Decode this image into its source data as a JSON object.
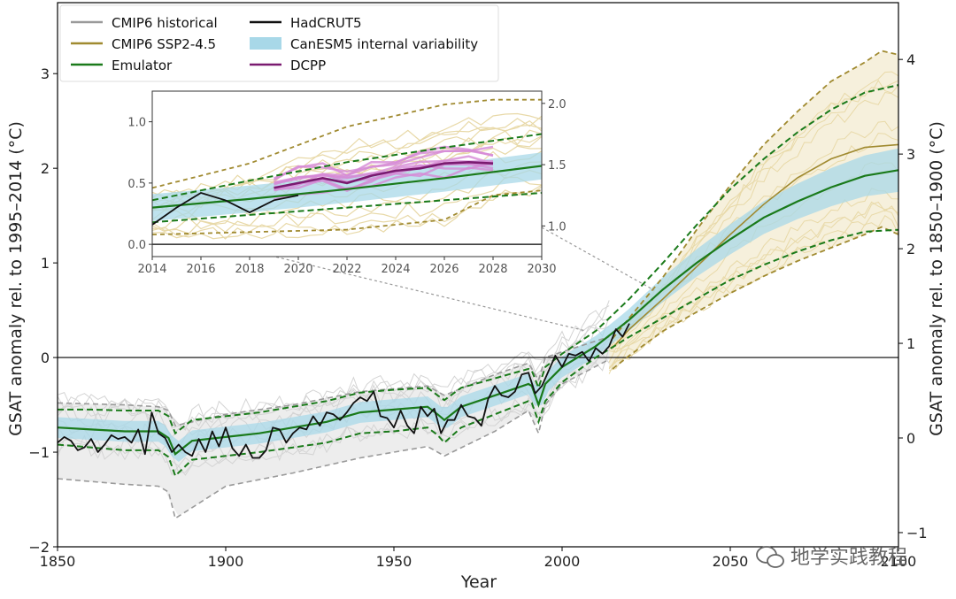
{
  "chart_data": {
    "type": "line",
    "title": "",
    "xlabel": "Year",
    "ylabel_left": "GSAT anomaly rel. to 1995–2014 (°C)",
    "ylabel_right": "GSAT anomaly rel. to 1850–1900 (°C)",
    "xlim": [
      1850,
      2100
    ],
    "ylim": [
      -2.0,
      3.75
    ],
    "x_ticks": [
      "1850",
      "1900",
      "1950",
      "2000",
      "2050",
      "2100"
    ],
    "y_ticks_left": [
      "−2",
      "−1",
      "0",
      "1",
      "2",
      "3"
    ],
    "y_ticks_right": [
      "−1",
      "0",
      "1",
      "2",
      "3",
      "4"
    ],
    "right_axis_offset": 0.85,
    "legend": [
      {
        "name": "CMIP6 historical",
        "color": "#9a9a9a",
        "style": "line"
      },
      {
        "name": "CMIP6 SSP2-4.5",
        "color": "#a08a30",
        "style": "line"
      },
      {
        "name": "Emulator",
        "color": "#1a7a1a",
        "style": "line"
      },
      {
        "name": "HadCRUT5",
        "color": "#111111",
        "style": "line"
      },
      {
        "name": "CanESM5  internal variability",
        "color": "#a8d8e8",
        "style": "band"
      },
      {
        "name": "DCPP",
        "color": "#7a1a70",
        "style": "line"
      }
    ],
    "series": {
      "emulator_median": {
        "x": [
          1850,
          1860,
          1870,
          1880,
          1883,
          1885,
          1890,
          1900,
          1910,
          1920,
          1930,
          1940,
          1950,
          1960,
          1963,
          1965,
          1970,
          1980,
          1990,
          1991,
          1993,
          1995,
          2000,
          2010,
          2020,
          2030,
          2040,
          2050,
          2060,
          2070,
          2080,
          2090,
          2100
        ],
        "y": [
          -0.74,
          -0.76,
          -0.78,
          -0.78,
          -0.85,
          -1.02,
          -0.88,
          -0.84,
          -0.8,
          -0.74,
          -0.68,
          -0.58,
          -0.55,
          -0.52,
          -0.6,
          -0.66,
          -0.52,
          -0.4,
          -0.28,
          -0.3,
          -0.5,
          -0.28,
          -0.1,
          0.12,
          0.4,
          0.72,
          1.0,
          1.25,
          1.48,
          1.65,
          1.8,
          1.92,
          1.98
        ]
      },
      "emulator_upper": {
        "x": [
          1850,
          1860,
          1870,
          1880,
          1883,
          1885,
          1890,
          1900,
          1910,
          1920,
          1930,
          1940,
          1950,
          1960,
          1963,
          1965,
          1970,
          1980,
          1990,
          1991,
          1993,
          1995,
          2000,
          2010,
          2020,
          2030,
          2040,
          2050,
          2060,
          2070,
          2080,
          2090,
          2100
        ],
        "y": [
          -0.55,
          -0.55,
          -0.56,
          -0.56,
          -0.62,
          -0.8,
          -0.66,
          -0.62,
          -0.58,
          -0.52,
          -0.46,
          -0.37,
          -0.34,
          -0.32,
          -0.4,
          -0.45,
          -0.32,
          -0.22,
          -0.12,
          -0.14,
          -0.32,
          -0.1,
          0.04,
          0.28,
          0.62,
          1.0,
          1.4,
          1.78,
          2.1,
          2.38,
          2.62,
          2.8,
          2.88
        ]
      },
      "emulator_lower": {
        "x": [
          1850,
          1860,
          1870,
          1880,
          1883,
          1885,
          1890,
          1900,
          1910,
          1920,
          1930,
          1940,
          1950,
          1960,
          1963,
          1965,
          1970,
          1980,
          1990,
          1991,
          1993,
          1995,
          2000,
          2010,
          2020,
          2030,
          2040,
          2050,
          2060,
          2070,
          2080,
          2090,
          2100
        ],
        "y": [
          -0.92,
          -0.95,
          -0.98,
          -0.98,
          -1.05,
          -1.25,
          -1.08,
          -1.04,
          -1.0,
          -0.95,
          -0.9,
          -0.8,
          -0.78,
          -0.74,
          -0.82,
          -0.9,
          -0.74,
          -0.6,
          -0.46,
          -0.48,
          -0.68,
          -0.46,
          -0.26,
          0.0,
          0.22,
          0.42,
          0.62,
          0.82,
          0.98,
          1.12,
          1.24,
          1.33,
          1.35
        ]
      },
      "ssp245_upper": {
        "x": [
          2015,
          2020,
          2030,
          2040,
          2050,
          2060,
          2070,
          2080,
          2090,
          2095,
          2100
        ],
        "y": [
          0.2,
          0.42,
          0.85,
          1.35,
          1.82,
          2.25,
          2.6,
          2.92,
          3.12,
          3.24,
          3.2
        ]
      },
      "ssp245_lower": {
        "x": [
          2015,
          2020,
          2030,
          2040,
          2050,
          2060,
          2070,
          2080,
          2090,
          2095,
          2100
        ],
        "y": [
          -0.12,
          0.02,
          0.28,
          0.48,
          0.68,
          0.86,
          1.02,
          1.16,
          1.3,
          1.38,
          1.3
        ]
      },
      "cmip6_ssp245_mean": {
        "x": [
          2015,
          2020,
          2030,
          2040,
          2050,
          2060,
          2070,
          2080,
          2090,
          2100
        ],
        "y": [
          0.1,
          0.3,
          0.62,
          0.96,
          1.3,
          1.62,
          1.9,
          2.1,
          2.22,
          2.25
        ]
      },
      "cmip6_hist_upper": {
        "x": [
          1850,
          1870,
          1880,
          1883,
          1885,
          1900,
          1920,
          1940,
          1960,
          1965,
          1980,
          1990,
          1993,
          1995,
          2000,
          2014
        ],
        "y": [
          -0.48,
          -0.5,
          -0.52,
          -0.56,
          -0.72,
          -0.6,
          -0.5,
          -0.36,
          -0.3,
          -0.4,
          -0.18,
          -0.06,
          -0.24,
          0.0,
          0.06,
          0.22
        ]
      },
      "cmip6_hist_lower": {
        "x": [
          1850,
          1870,
          1880,
          1883,
          1885,
          1900,
          1920,
          1940,
          1960,
          1965,
          1980,
          1990,
          1993,
          1995,
          2000,
          2014
        ],
        "y": [
          -1.28,
          -1.34,
          -1.36,
          -1.42,
          -1.7,
          -1.36,
          -1.22,
          -1.06,
          -0.94,
          -1.04,
          -0.78,
          -0.56,
          -0.8,
          -0.5,
          -0.28,
          -0.02
        ]
      },
      "hadcrut5": {
        "x": [
          1850,
          1852,
          1854,
          1856,
          1858,
          1860,
          1862,
          1864,
          1866,
          1868,
          1870,
          1872,
          1874,
          1876,
          1878,
          1880,
          1882,
          1884,
          1886,
          1888,
          1890,
          1892,
          1894,
          1896,
          1898,
          1900,
          1902,
          1904,
          1906,
          1908,
          1910,
          1912,
          1914,
          1916,
          1918,
          1920,
          1922,
          1924,
          1926,
          1928,
          1930,
          1932,
          1934,
          1936,
          1938,
          1940,
          1942,
          1944,
          1946,
          1948,
          1950,
          1952,
          1954,
          1956,
          1958,
          1960,
          1962,
          1964,
          1966,
          1968,
          1970,
          1972,
          1974,
          1976,
          1978,
          1980,
          1982,
          1984,
          1986,
          1988,
          1990,
          1992,
          1994,
          1996,
          1998,
          2000,
          2002,
          2004,
          2006,
          2008,
          2010,
          2012,
          2014,
          2016,
          2018,
          2020
        ],
        "y": [
          -0.9,
          -0.84,
          -0.88,
          -0.98,
          -0.95,
          -0.86,
          -1.0,
          -0.92,
          -0.82,
          -0.86,
          -0.84,
          -0.9,
          -0.76,
          -1.02,
          -0.58,
          -0.8,
          -0.85,
          -1.0,
          -0.92,
          -1.0,
          -1.04,
          -0.86,
          -1.0,
          -0.78,
          -0.94,
          -0.74,
          -0.96,
          -1.04,
          -0.92,
          -1.06,
          -1.06,
          -0.98,
          -0.74,
          -0.76,
          -0.9,
          -0.8,
          -0.74,
          -0.76,
          -0.62,
          -0.72,
          -0.58,
          -0.6,
          -0.66,
          -0.58,
          -0.48,
          -0.42,
          -0.46,
          -0.36,
          -0.62,
          -0.64,
          -0.74,
          -0.56,
          -0.72,
          -0.8,
          -0.52,
          -0.62,
          -0.54,
          -0.8,
          -0.66,
          -0.66,
          -0.5,
          -0.62,
          -0.64,
          -0.72,
          -0.44,
          -0.3,
          -0.4,
          -0.42,
          -0.36,
          -0.18,
          -0.16,
          -0.38,
          -0.3,
          -0.14,
          0.02,
          -0.1,
          0.04,
          0.02,
          0.06,
          -0.04,
          0.1,
          0.04,
          0.12,
          0.3,
          0.22,
          0.36
        ]
      },
      "inset": {
        "xlim": [
          2014,
          2030
        ],
        "ylim": [
          -0.1,
          1.25
        ],
        "x_ticks": [
          "2014",
          "2016",
          "2018",
          "2020",
          "2022",
          "2024",
          "2026",
          "2028",
          "2030"
        ],
        "y_ticks_left": [
          "0.0",
          "0.5",
          "1.0"
        ],
        "y_ticks_right": [
          "1.0",
          "1.5",
          "2.0"
        ],
        "hadcrut5": {
          "x": [
            2014,
            2015,
            2016,
            2017,
            2018,
            2019,
            2020
          ],
          "y": [
            0.16,
            0.3,
            0.42,
            0.36,
            0.26,
            0.36,
            0.4
          ]
        },
        "emulator_median": {
          "x": [
            2014,
            2018,
            2022,
            2026,
            2030
          ],
          "y": [
            0.3,
            0.37,
            0.45,
            0.54,
            0.64
          ]
        },
        "emulator_upper": {
          "x": [
            2014,
            2018,
            2022,
            2026,
            2030
          ],
          "y": [
            0.36,
            0.52,
            0.67,
            0.79,
            0.9
          ]
        },
        "emulator_lower": {
          "x": [
            2014,
            2018,
            2022,
            2026,
            2030
          ],
          "y": [
            0.18,
            0.24,
            0.3,
            0.36,
            0.42
          ]
        },
        "ssp245_upper": {
          "x": [
            2014,
            2018,
            2022,
            2026,
            2028,
            2030
          ],
          "y": [
            0.46,
            0.66,
            0.96,
            1.14,
            1.18,
            1.18
          ]
        },
        "ssp245_lower": {
          "x": [
            2014,
            2018,
            2022,
            2026,
            2028,
            2030
          ],
          "y": [
            0.08,
            0.1,
            0.12,
            0.2,
            0.4,
            0.44
          ]
        },
        "dcpp_mean": {
          "x": [
            2019,
            2020,
            2021,
            2022,
            2023,
            2024,
            2025,
            2026,
            2027,
            2028
          ],
          "y": [
            0.46,
            0.5,
            0.54,
            0.5,
            0.56,
            0.6,
            0.62,
            0.66,
            0.67,
            0.66
          ]
        }
      }
    }
  },
  "watermark": {
    "text": "地学实践教程",
    "icon": "wechat-icon"
  }
}
